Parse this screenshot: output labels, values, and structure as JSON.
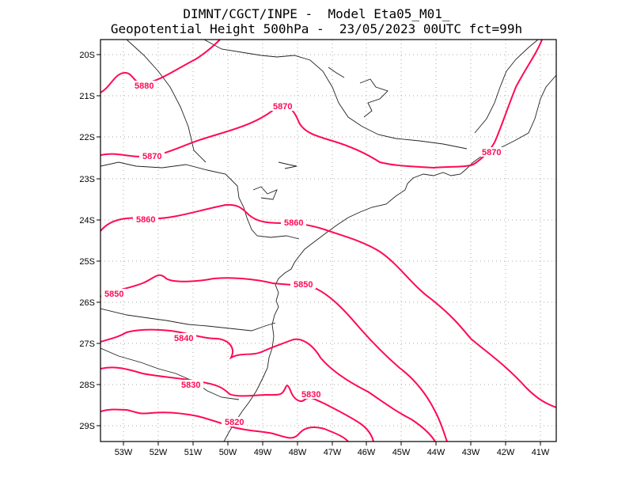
{
  "title": {
    "line1": "DIMNT/CGCT/INPE -  Model Eta05_M01_",
    "line2": "Geopotential Height 500hPa -  23/05/2023 00UTC fct=99h"
  },
  "map": {
    "lon_labels": [
      "53W",
      "52W",
      "51W",
      "50W",
      "49W",
      "48W",
      "47W",
      "46W",
      "45W",
      "44W",
      "43W",
      "42W",
      "41W"
    ],
    "lat_labels": [
      "20S",
      "21S",
      "22S",
      "23S",
      "24S",
      "25S",
      "26S",
      "27S",
      "28S",
      "29S"
    ],
    "contour_color": "#ff0a55",
    "contour_labels": [
      "5880",
      "5870",
      "5870",
      "5860",
      "5860",
      "5850",
      "5850",
      "5840",
      "5830",
      "5830",
      "5820",
      "5870"
    ]
  }
}
